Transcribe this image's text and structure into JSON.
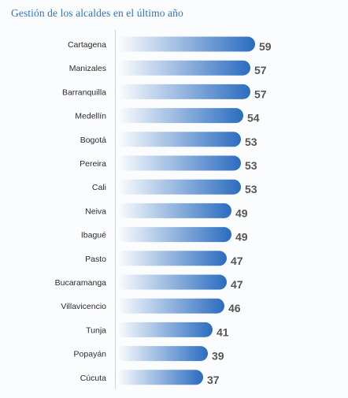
{
  "title": "Gestión de los alcaldes en el último año",
  "colors": {
    "bar_start": "#ffffff",
    "bar_end": "#2b6cc0",
    "title": "#2f73c2",
    "value": "#555555"
  },
  "chart_data": {
    "type": "bar",
    "orientation": "horizontal",
    "title": "Gestión de los alcaldes en el último año",
    "categories": [
      "Cartagena",
      "Manizales",
      "Barranquilla",
      "Medellín",
      "Bogotá",
      "Pereira",
      "Cali",
      "Neiva",
      "Ibagué",
      "Pasto",
      "Bucaramanga",
      "Villavicencio",
      "Tunja",
      "Popayán",
      "Cúcuta"
    ],
    "values": [
      59,
      57,
      57,
      54,
      53,
      53,
      53,
      49,
      49,
      47,
      47,
      46,
      41,
      39,
      37
    ],
    "value_labels": [
      "59",
      "57",
      "57",
      "54",
      "53",
      "53",
      "53",
      "49",
      "49",
      "47",
      "47",
      "46",
      "41",
      "39",
      "37"
    ],
    "grid": false,
    "legend": "none"
  }
}
